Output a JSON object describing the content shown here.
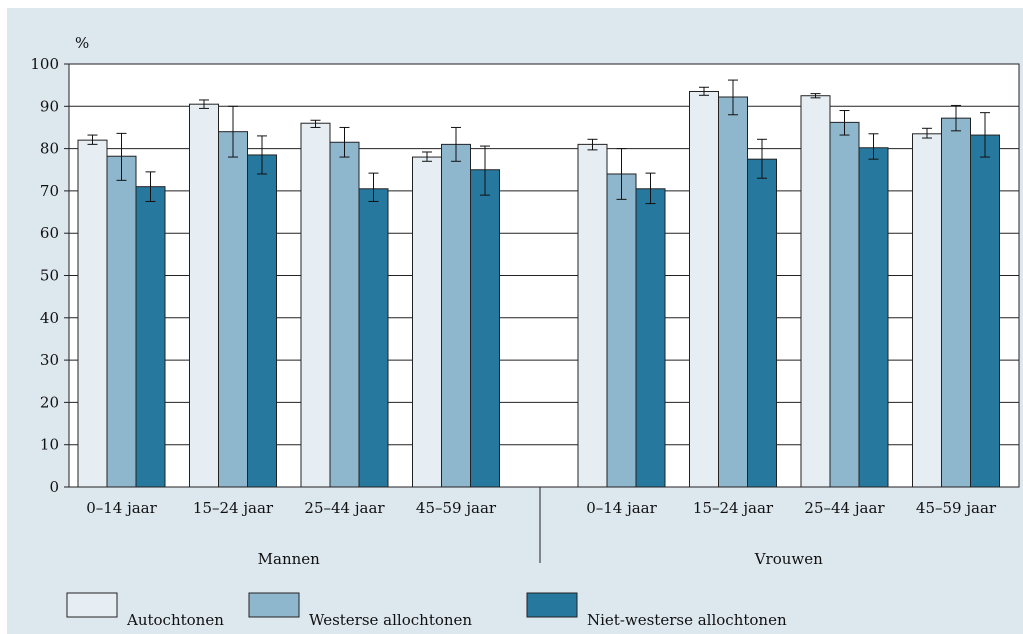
{
  "chart_data": {
    "type": "bar",
    "ylabel": "%",
    "ylim": [
      0,
      100
    ],
    "yticks": [
      0,
      10,
      20,
      30,
      40,
      50,
      60,
      70,
      80,
      90,
      100
    ],
    "grid": true,
    "legend_position": "bottom",
    "groups": [
      "Mannen",
      "Vrouwen"
    ],
    "categories": [
      "0–14 jaar",
      "15–24 jaar",
      "25–44 jaar",
      "45–59 jaar"
    ],
    "series": [
      {
        "name": "Autochtonen",
        "color": "#e6eef4",
        "values": [
          [
            82,
            90.5,
            86,
            78
          ],
          [
            81,
            93.5,
            92.5,
            83.5
          ]
        ],
        "error_low": [
          [
            81,
            89.5,
            85,
            77
          ],
          [
            79.7,
            92.6,
            92,
            82.5
          ]
        ],
        "error_high": [
          [
            83.2,
            91.5,
            86.7,
            79.2
          ],
          [
            82.2,
            94.5,
            93,
            84.8
          ]
        ]
      },
      {
        "name": "Westerse allochtonen",
        "color": "#8eb7cd",
        "values": [
          [
            78.2,
            84,
            81.5,
            81
          ],
          [
            74,
            92.2,
            86.2,
            87.2
          ]
        ],
        "error_low": [
          [
            72.5,
            78,
            78,
            77
          ],
          [
            68,
            88,
            83.2,
            84.2
          ]
        ],
        "error_high": [
          [
            83.6,
            90,
            85,
            85
          ],
          [
            80,
            96.2,
            89,
            90.2
          ]
        ]
      },
      {
        "name": "Niet-westerse allochtonen",
        "color": "#26789e",
        "values": [
          [
            71,
            78.5,
            70.5,
            75
          ],
          [
            70.5,
            77.5,
            80.2,
            83.2
          ]
        ],
        "error_low": [
          [
            67.5,
            74,
            67.5,
            69
          ],
          [
            67,
            73,
            77.5,
            78
          ]
        ],
        "error_high": [
          [
            74.5,
            83,
            74.2,
            80.6
          ],
          [
            74.2,
            82.2,
            83.5,
            88.5
          ]
        ]
      }
    ]
  }
}
